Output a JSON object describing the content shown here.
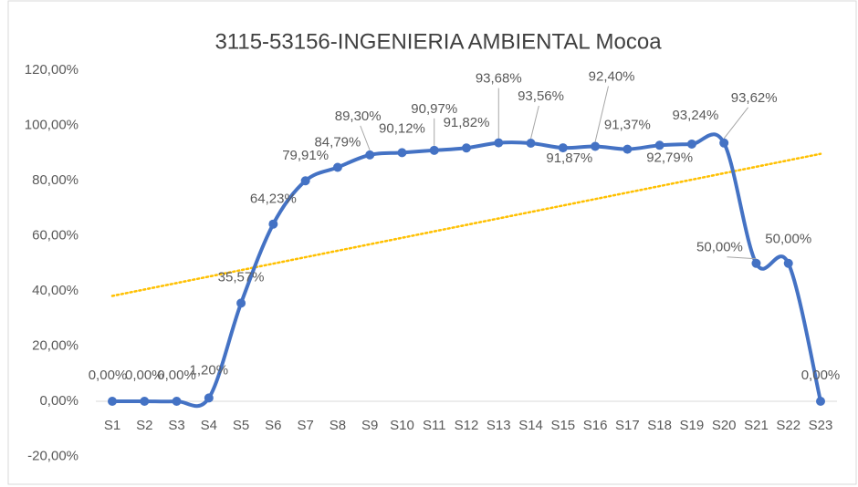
{
  "chart_data": {
    "type": "line",
    "title": "3115-53156-INGENIERIA AMBIENTAL Mocoa",
    "categories": [
      "S1",
      "S2",
      "S3",
      "S4",
      "S5",
      "S6",
      "S7",
      "S8",
      "S9",
      "S10",
      "S11",
      "S12",
      "S13",
      "S14",
      "S15",
      "S16",
      "S17",
      "S18",
      "S19",
      "S20",
      "S21",
      "S22",
      "S23"
    ],
    "series": [
      {
        "name": "Series1",
        "color": "#4472c4",
        "values": [
          0,
          0,
          0,
          1.2,
          35.57,
          64.23,
          79.91,
          84.79,
          89.3,
          90.12,
          90.97,
          91.82,
          93.68,
          93.56,
          91.87,
          92.4,
          91.37,
          92.79,
          93.24,
          93.62,
          50,
          50,
          0
        ],
        "value_labels": [
          "0,00%",
          "0,00%",
          "0,00%",
          "1,20%",
          "35,57%",
          "64,23%",
          "79,91%",
          "84,79%",
          "89,30%",
          "90,12%",
          "90,97%",
          "91,82%",
          "93,68%",
          "93,56%",
          "91,87%",
          "92,40%",
          "91,37%",
          "92,79%",
          "93,24%",
          "93,62%",
          "50,00%",
          "50,00%",
          "0,00%"
        ]
      }
    ],
    "trendline": {
      "type": "linear",
      "color": "#ffc000"
    },
    "smooth": true,
    "ylim": [
      -20,
      120
    ],
    "yticks": [
      {
        "value": -20,
        "label": "-20,00%"
      },
      {
        "value": 0,
        "label": "0,00%"
      },
      {
        "value": 20,
        "label": "20,00%"
      },
      {
        "value": 40,
        "label": "40,00%"
      },
      {
        "value": 60,
        "label": "60,00%"
      },
      {
        "value": 80,
        "label": "80,00%"
      },
      {
        "value": 100,
        "label": "100,00%"
      },
      {
        "value": 120,
        "label": "120,00%"
      }
    ]
  }
}
